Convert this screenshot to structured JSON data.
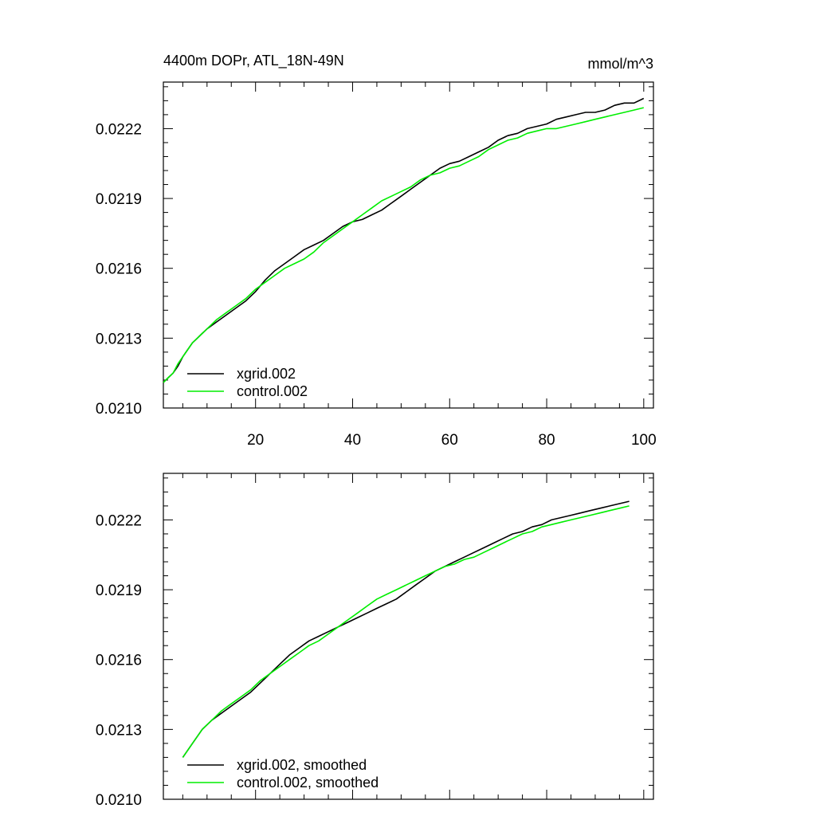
{
  "chart_data": [
    {
      "type": "line",
      "title": "4400m DOPr, ATL_18N-49N",
      "units": "mmol/m^3",
      "xlim": [
        1,
        102
      ],
      "ylim": [
        0.021,
        0.0224
      ],
      "xticks": [
        20,
        40,
        60,
        80,
        100
      ],
      "xtick_labels": [
        "20",
        "40",
        "60",
        "80",
        "100"
      ],
      "yticks": [
        0.021,
        0.0213,
        0.0216,
        0.0219,
        0.0222
      ],
      "ytick_labels": [
        "0.0210",
        "0.0213",
        "0.0216",
        "0.0219",
        "0.0222"
      ],
      "legend_position": "bottom-left",
      "grid": false,
      "series": [
        {
          "name": "xgrid.002",
          "color": "#000000",
          "x": [
            1,
            2,
            3,
            4,
            5,
            6,
            7,
            8,
            9,
            10,
            12,
            14,
            16,
            18,
            20,
            22,
            24,
            26,
            28,
            30,
            32,
            34,
            36,
            38,
            40,
            42,
            44,
            46,
            48,
            50,
            52,
            54,
            56,
            58,
            60,
            62,
            64,
            66,
            68,
            70,
            72,
            74,
            76,
            78,
            80,
            82,
            84,
            86,
            88,
            90,
            92,
            94,
            96,
            98,
            100
          ],
          "y": [
            0.02111,
            0.02113,
            0.02115,
            0.02118,
            0.02122,
            0.02125,
            0.02128,
            0.0213,
            0.02132,
            0.02134,
            0.02137,
            0.0214,
            0.02143,
            0.02146,
            0.0215,
            0.02155,
            0.02159,
            0.02162,
            0.02165,
            0.02168,
            0.0217,
            0.02172,
            0.02175,
            0.02178,
            0.0218,
            0.02181,
            0.02183,
            0.02185,
            0.02188,
            0.02191,
            0.02194,
            0.02197,
            0.022,
            0.02203,
            0.02205,
            0.02206,
            0.02208,
            0.0221,
            0.02212,
            0.02215,
            0.02217,
            0.02218,
            0.0222,
            0.02221,
            0.02222,
            0.02224,
            0.02225,
            0.02226,
            0.02227,
            0.02227,
            0.02228,
            0.0223,
            0.02231,
            0.02231,
            0.02233
          ]
        },
        {
          "name": "control.002",
          "color": "#00ee00",
          "x": [
            1,
            2,
            3,
            4,
            5,
            6,
            7,
            8,
            9,
            10,
            12,
            14,
            16,
            18,
            20,
            22,
            24,
            26,
            28,
            30,
            32,
            34,
            36,
            38,
            40,
            42,
            44,
            46,
            48,
            50,
            52,
            54,
            56,
            58,
            60,
            62,
            64,
            66,
            68,
            70,
            72,
            74,
            76,
            78,
            80,
            82,
            84,
            86,
            88,
            90,
            92,
            94,
            96,
            98,
            100
          ],
          "y": [
            0.02111,
            0.02113,
            0.02115,
            0.02119,
            0.02122,
            0.02125,
            0.02128,
            0.0213,
            0.02132,
            0.02134,
            0.02138,
            0.02141,
            0.02144,
            0.02147,
            0.02151,
            0.02154,
            0.02157,
            0.0216,
            0.02162,
            0.02164,
            0.02167,
            0.02171,
            0.02174,
            0.02177,
            0.0218,
            0.02183,
            0.02186,
            0.02189,
            0.02191,
            0.02193,
            0.02195,
            0.02198,
            0.022,
            0.02201,
            0.02203,
            0.02204,
            0.02206,
            0.02208,
            0.02211,
            0.02213,
            0.02215,
            0.02216,
            0.02218,
            0.02219,
            0.0222,
            0.0222,
            0.02221,
            0.02222,
            0.02223,
            0.02224,
            0.02225,
            0.02226,
            0.02227,
            0.02228,
            0.02229
          ]
        }
      ]
    },
    {
      "type": "line",
      "title": "",
      "xlim": [
        1,
        102
      ],
      "ylim": [
        0.021,
        0.0224
      ],
      "xticks": [
        20,
        40,
        60,
        80,
        100
      ],
      "yticks": [
        0.021,
        0.0213,
        0.0216,
        0.0219,
        0.0222
      ],
      "ytick_labels": [
        "0.0210",
        "0.0213",
        "0.0216",
        "0.0219",
        "0.0222"
      ],
      "legend_position": "bottom-left",
      "grid": false,
      "series": [
        {
          "name": "xgrid.002, smoothed",
          "color": "#000000",
          "x": [
            5,
            7,
            9,
            11,
            13,
            15,
            17,
            19,
            21,
            23,
            25,
            27,
            29,
            31,
            33,
            35,
            37,
            39,
            41,
            43,
            45,
            47,
            49,
            51,
            53,
            55,
            57,
            59,
            61,
            63,
            65,
            67,
            69,
            71,
            73,
            75,
            77,
            79,
            81,
            83,
            85,
            87,
            89,
            91,
            93,
            95,
            97
          ],
          "y": [
            0.02118,
            0.02124,
            0.0213,
            0.02134,
            0.02137,
            0.0214,
            0.02143,
            0.02146,
            0.0215,
            0.02154,
            0.02158,
            0.02162,
            0.02165,
            0.02168,
            0.0217,
            0.02172,
            0.02174,
            0.02176,
            0.02178,
            0.0218,
            0.02182,
            0.02184,
            0.02186,
            0.02189,
            0.02192,
            0.02195,
            0.02198,
            0.022,
            0.02202,
            0.02204,
            0.02206,
            0.02208,
            0.0221,
            0.02212,
            0.02214,
            0.02215,
            0.02217,
            0.02218,
            0.0222,
            0.02221,
            0.02222,
            0.02223,
            0.02224,
            0.02225,
            0.02226,
            0.02227,
            0.02228
          ]
        },
        {
          "name": "control.002, smoothed",
          "color": "#00ee00",
          "x": [
            5,
            7,
            9,
            11,
            13,
            15,
            17,
            19,
            21,
            23,
            25,
            27,
            29,
            31,
            33,
            35,
            37,
            39,
            41,
            43,
            45,
            47,
            49,
            51,
            53,
            55,
            57,
            59,
            61,
            63,
            65,
            67,
            69,
            71,
            73,
            75,
            77,
            79,
            81,
            83,
            85,
            87,
            89,
            91,
            93,
            95,
            97
          ],
          "y": [
            0.02118,
            0.02124,
            0.0213,
            0.02134,
            0.02138,
            0.02141,
            0.02144,
            0.02147,
            0.02151,
            0.02154,
            0.02157,
            0.0216,
            0.02163,
            0.02166,
            0.02168,
            0.02171,
            0.02174,
            0.02177,
            0.0218,
            0.02183,
            0.02186,
            0.02188,
            0.0219,
            0.02192,
            0.02194,
            0.02196,
            0.02198,
            0.022,
            0.02201,
            0.02203,
            0.02204,
            0.02206,
            0.02208,
            0.0221,
            0.02212,
            0.02214,
            0.02215,
            0.02217,
            0.02218,
            0.02219,
            0.0222,
            0.02221,
            0.02222,
            0.02223,
            0.02224,
            0.02225,
            0.02226
          ]
        }
      ]
    }
  ]
}
